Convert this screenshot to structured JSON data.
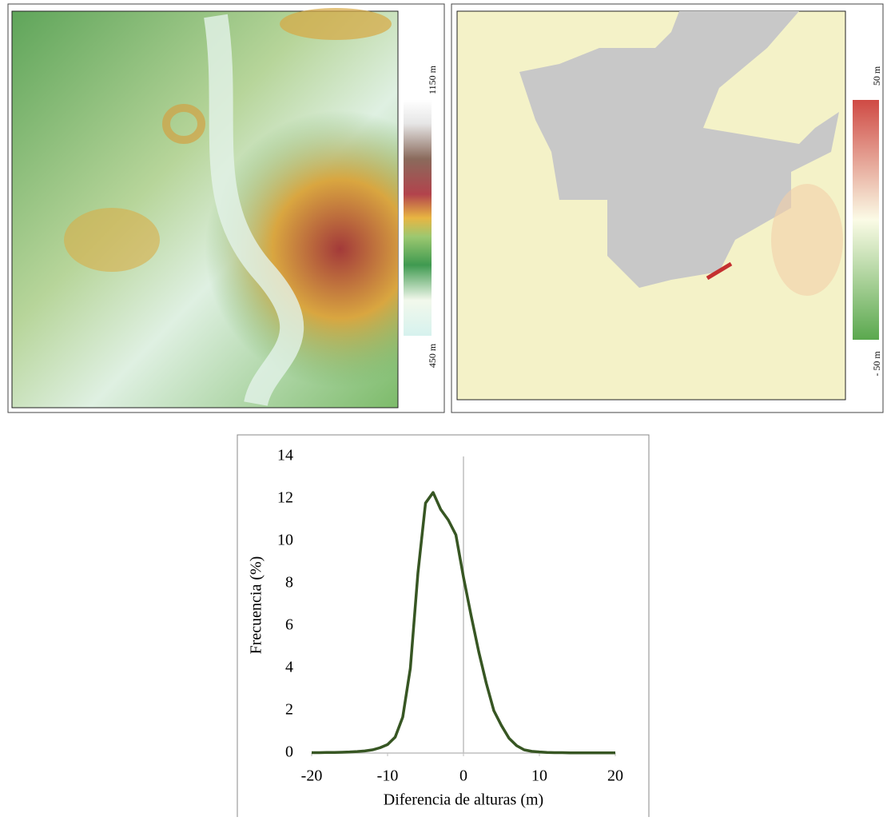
{
  "maps": [
    {
      "legend_labels": [
        "1150 m",
        "450 m"
      ]
    },
    {
      "legend_labels": [
        "50 m",
        "- 50 m"
      ]
    }
  ],
  "chart_data": {
    "type": "line",
    "x_label": "Diferencia de alturas (m)",
    "y_label": "Frecuencia (%)",
    "x": [
      -20,
      -19,
      -18,
      -17,
      -16,
      -15,
      -14,
      -13,
      -12,
      -11,
      -10,
      -9,
      -8,
      -7,
      -6,
      -5,
      -4,
      -3,
      -2,
      -1,
      0,
      1,
      2,
      3,
      4,
      5,
      6,
      7,
      8,
      9,
      10,
      11,
      12,
      13,
      14,
      15,
      16,
      17,
      18,
      19,
      20
    ],
    "values": [
      0.02,
      0.02,
      0.03,
      0.03,
      0.04,
      0.05,
      0.07,
      0.1,
      0.15,
      0.25,
      0.4,
      0.75,
      1.7,
      4.0,
      8.5,
      11.8,
      12.3,
      11.5,
      11.0,
      10.3,
      8.3,
      6.5,
      4.8,
      3.3,
      2.0,
      1.3,
      0.7,
      0.35,
      0.15,
      0.08,
      0.05,
      0.03,
      0.02,
      0.02,
      0.01,
      0.01,
      0.01,
      0.01,
      0.01,
      0.01,
      0.01
    ],
    "color": "#375623",
    "xlim": [
      -20,
      20
    ],
    "ylim": [
      0,
      14
    ],
    "xticks": [
      -20,
      -10,
      0,
      10,
      20
    ],
    "yticks": [
      0,
      2,
      4,
      6,
      8,
      10,
      12,
      14
    ]
  }
}
